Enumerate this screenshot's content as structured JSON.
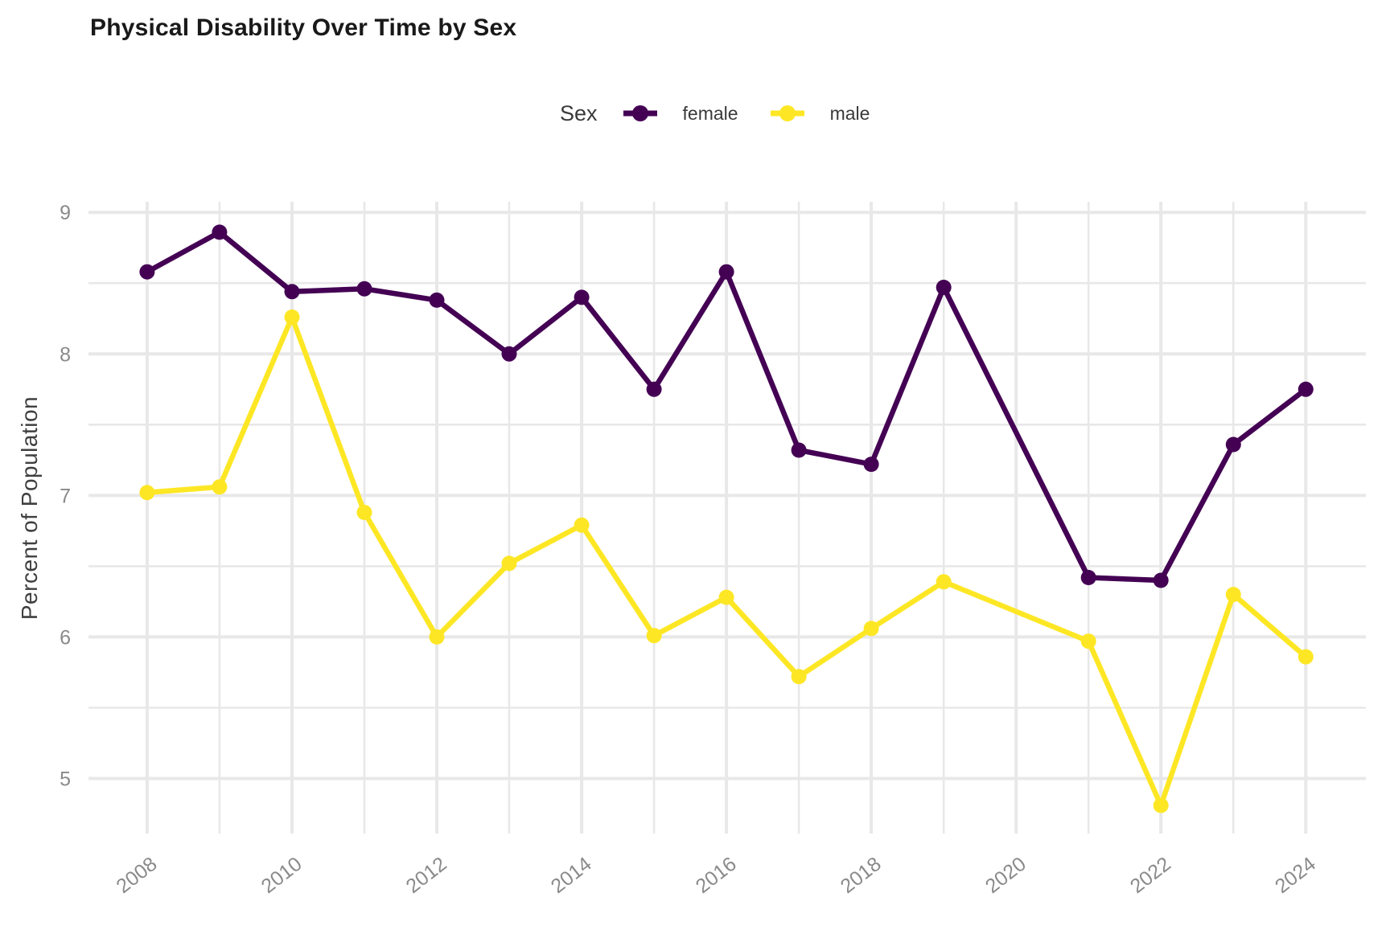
{
  "chart_data": {
    "type": "line",
    "title": "Physical Disability Over Time by Sex",
    "ylabel": "Percent of Population",
    "xlabel": "",
    "legend_title": "Sex",
    "legend_position": "top",
    "grid": true,
    "x": [
      2008,
      2009,
      2010,
      2011,
      2012,
      2013,
      2014,
      2015,
      2016,
      2017,
      2018,
      2019,
      2020,
      2021,
      2022,
      2023,
      2024
    ],
    "series": [
      {
        "name": "female",
        "color": "#440154",
        "values": [
          8.58,
          8.86,
          8.44,
          8.46,
          8.38,
          8.0,
          8.4,
          7.75,
          8.58,
          7.32,
          7.22,
          8.47,
          null,
          6.42,
          6.4,
          7.36,
          7.75
        ]
      },
      {
        "name": "male",
        "color": "#FDE725",
        "values": [
          7.02,
          7.06,
          8.26,
          6.88,
          6.0,
          6.52,
          6.79,
          6.01,
          6.28,
          5.72,
          6.06,
          6.39,
          null,
          5.97,
          4.81,
          6.3,
          5.86
        ]
      }
    ],
    "x_tick_labels": [
      "2008",
      "2010",
      "2012",
      "2014",
      "2016",
      "2018",
      "2020",
      "2022",
      "2024"
    ],
    "x_tick_years": [
      2008,
      2010,
      2012,
      2014,
      2016,
      2018,
      2020,
      2022,
      2024
    ],
    "y_ticks": [
      5,
      6,
      7,
      8,
      9
    ],
    "y_minor_ticks": [
      5.5,
      6.5,
      7.5,
      8.5
    ],
    "xlim": [
      2007.19,
      2024.83
    ],
    "ylim": [
      4.611,
      9.075
    ],
    "missing_years": [
      2020
    ],
    "colors": {
      "grid": "#E8E8E8",
      "tick_text": "#8A8A8A",
      "axis_title_text": "#3F3F3F",
      "title_text": "#191919",
      "background": "#FFFFFF"
    }
  }
}
